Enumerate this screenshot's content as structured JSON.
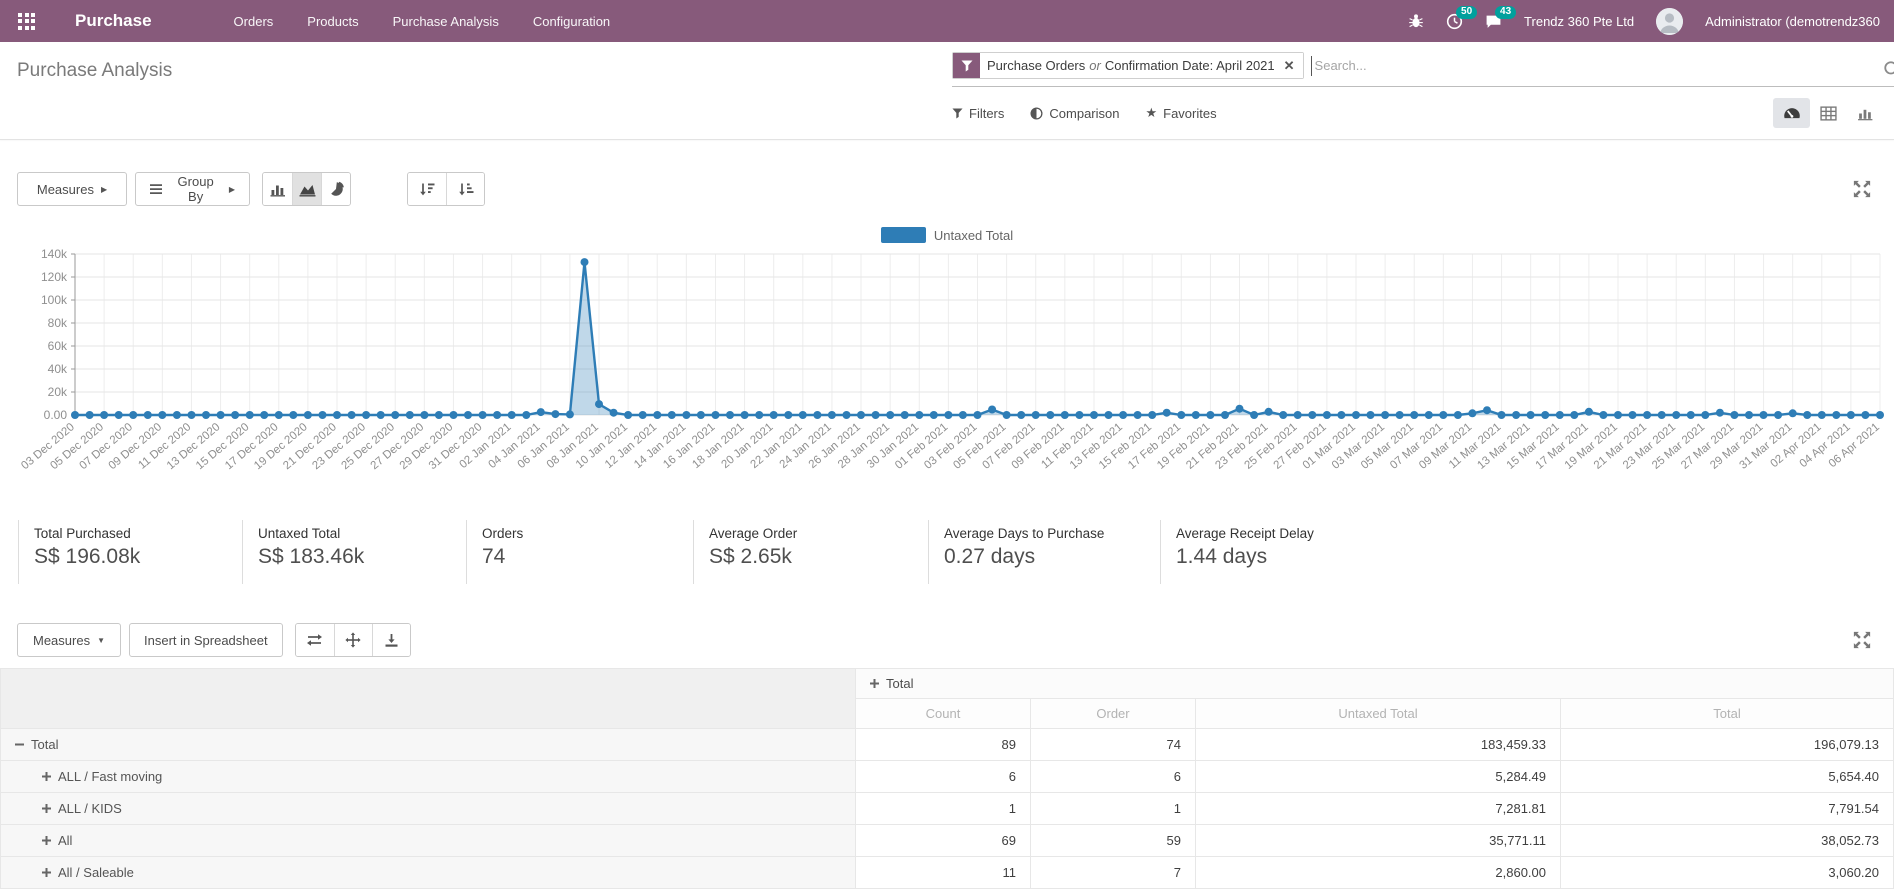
{
  "colors": {
    "brand": "#875A7B",
    "badge": "#00A09D",
    "chart": "#2e7db6"
  },
  "navbar": {
    "app_name": "Purchase",
    "menu": [
      "Orders",
      "Products",
      "Purchase Analysis",
      "Configuration"
    ],
    "activity_badge": "50",
    "message_badge": "43",
    "company": "Trendz 360 Pte Ltd",
    "user": "Administrator (demotrendz360"
  },
  "control_panel": {
    "title": "Purchase Analysis",
    "facet": {
      "part1": "Purchase Orders",
      "or": "or",
      "part2": "Confirmation Date: April 2021"
    },
    "search_placeholder": "Search...",
    "filters_label": "Filters",
    "comparison_label": "Comparison",
    "favorites_label": "Favorites"
  },
  "chart_toolbar": {
    "measures_label": "Measures",
    "group_by_label": "Group By"
  },
  "chart_data": {
    "type": "area",
    "title": "",
    "legend": "Untaxed Total",
    "xlabel": "",
    "ylabel": "",
    "grid": true,
    "legend_position": "top-center",
    "ylim": [
      0,
      140000
    ],
    "ytick_labels": [
      "0.00",
      "20k",
      "40k",
      "60k",
      "80k",
      "100k",
      "120k",
      "140k"
    ],
    "x_interval_days": 1,
    "tick_every": 2,
    "x_tick_labels": [
      "03 Dec 2020",
      "05 Dec 2020",
      "07 Dec 2020",
      "09 Dec 2020",
      "11 Dec 2020",
      "13 Dec 2020",
      "15 Dec 2020",
      "17 Dec 2020",
      "19 Dec 2020",
      "21 Dec 2020",
      "23 Dec 2020",
      "25 Dec 2020",
      "27 Dec 2020",
      "29 Dec 2020",
      "31 Dec 2020",
      "02 Jan 2021",
      "04 Jan 2021",
      "06 Jan 2021",
      "08 Jan 2021",
      "10 Jan 2021",
      "12 Jan 2021",
      "14 Jan 2021",
      "16 Jan 2021",
      "18 Jan 2021",
      "20 Jan 2021",
      "22 Jan 2021",
      "24 Jan 2021",
      "26 Jan 2021",
      "28 Jan 2021",
      "30 Jan 2021",
      "01 Feb 2021",
      "03 Feb 2021",
      "05 Feb 2021",
      "07 Feb 2021",
      "09 Feb 2021",
      "11 Feb 2021",
      "13 Feb 2021",
      "15 Feb 2021",
      "17 Feb 2021",
      "19 Feb 2021",
      "21 Feb 2021",
      "23 Feb 2021",
      "25 Feb 2021",
      "27 Feb 2021",
      "01 Mar 2021",
      "03 Mar 2021",
      "05 Mar 2021",
      "07 Mar 2021",
      "09 Mar 2021",
      "11 Mar 2021",
      "13 Mar 2021",
      "15 Mar 2021",
      "17 Mar 2021",
      "19 Mar 2021",
      "21 Mar 2021",
      "23 Mar 2021",
      "25 Mar 2021",
      "27 Mar 2021",
      "29 Mar 2021",
      "31 Mar 2021",
      "02 Apr 2021",
      "04 Apr 2021",
      "06 Apr 2021"
    ],
    "series": [
      {
        "name": "Untaxed Total",
        "values": [
          0,
          0,
          0,
          0,
          0,
          0,
          0,
          0,
          0,
          0,
          0,
          0,
          0,
          0,
          0,
          0,
          0,
          0,
          0,
          0,
          0,
          0,
          0,
          0,
          0,
          0,
          0,
          0,
          0,
          0,
          0,
          0,
          2500,
          800,
          500,
          133000,
          9500,
          2000,
          0,
          0,
          0,
          0,
          0,
          0,
          0,
          0,
          0,
          0,
          0,
          0,
          0,
          0,
          0,
          0,
          0,
          0,
          0,
          0,
          0,
          0,
          0,
          0,
          0,
          4800,
          0,
          0,
          0,
          0,
          0,
          0,
          0,
          0,
          0,
          0,
          0,
          2000,
          0,
          0,
          0,
          0,
          5500,
          0,
          2800,
          0,
          0,
          0,
          0,
          0,
          0,
          0,
          0,
          0,
          0,
          0,
          0,
          0,
          1500,
          4200,
          0,
          0,
          0,
          0,
          0,
          0,
          2800,
          0,
          0,
          0,
          0,
          0,
          0,
          0,
          0,
          2000,
          0,
          0,
          0,
          0,
          1500,
          0,
          0,
          0,
          0,
          0,
          0
        ]
      }
    ],
    "color": "#2e7db6"
  },
  "kpis": [
    {
      "label": "Total Purchased",
      "value": "S$ 196.08k"
    },
    {
      "label": "Untaxed Total",
      "value": "S$ 183.46k"
    },
    {
      "label": "Orders",
      "value": "74"
    },
    {
      "label": "Average Order",
      "value": "S$ 2.65k"
    },
    {
      "label": "Average Days to Purchase",
      "value": "0.27 days"
    },
    {
      "label": "Average Receipt Delay",
      "value": "1.44 days"
    }
  ],
  "pivot": {
    "measures_label": "Measures",
    "insert_label": "Insert in Spreadsheet",
    "span_header": "Total",
    "columns": [
      "Count",
      "Order",
      "Untaxed Total",
      "Total"
    ],
    "rows": [
      {
        "icon": "minus",
        "indent": 0,
        "label": "Total",
        "values": [
          "89",
          "74",
          "183,459.33",
          "196,079.13"
        ]
      },
      {
        "icon": "plus",
        "indent": 1,
        "label": "ALL / Fast moving",
        "values": [
          "6",
          "6",
          "5,284.49",
          "5,654.40"
        ]
      },
      {
        "icon": "plus",
        "indent": 1,
        "label": "ALL / KIDS",
        "values": [
          "1",
          "1",
          "7,281.81",
          "7,791.54"
        ]
      },
      {
        "icon": "plus",
        "indent": 1,
        "label": "All",
        "values": [
          "69",
          "59",
          "35,771.11",
          "38,052.73"
        ]
      },
      {
        "icon": "plus",
        "indent": 1,
        "label": "All / Saleable",
        "values": [
          "11",
          "7",
          "2,860.00",
          "3,060.20"
        ]
      }
    ]
  }
}
